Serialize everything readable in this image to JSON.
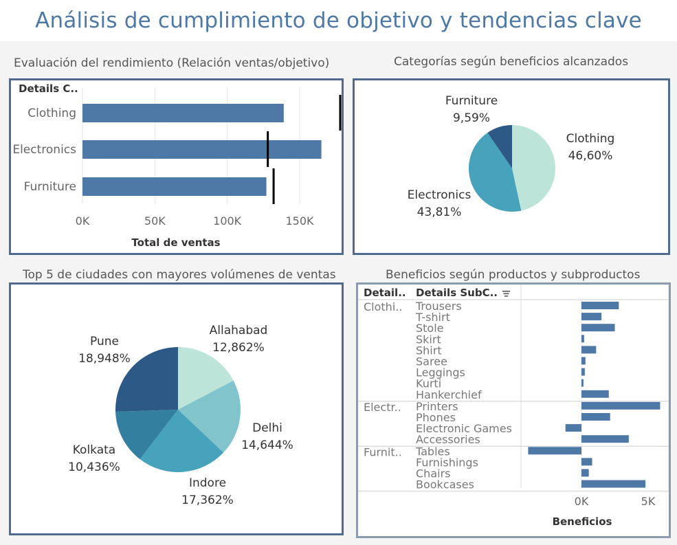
{
  "dashboard": {
    "title": "Análisis de cumplimiento de objetivo y tendencias clave"
  },
  "sheets": {
    "performance": {
      "title": "Evaluación del rendimiento (Relación ventas/objetivo)",
      "column_header": "Details C..",
      "xlabel": "Total de ventas"
    },
    "categories": {
      "title": "Categorías según beneficios alcanzados"
    },
    "cities": {
      "title": "Top 5 de ciudades con mayores volúmenes de ventas"
    },
    "products": {
      "title": "Beneficios según productos y subproductos",
      "header_category": "Detail..",
      "header_subcategory": "Details SubC..",
      "sort_icon": "sort-descending-icon",
      "xlabel": "Beneficios"
    }
  },
  "colors": {
    "bar": "#4e79a7",
    "target_marker": "#000000",
    "panel_border": "#4f6b8f",
    "title": "#4e79a7"
  },
  "chart_data": [
    {
      "id": "performance",
      "type": "bar",
      "orientation": "horizontal",
      "categories": [
        "Clothing",
        "Electronics",
        "Furniture"
      ],
      "series": [
        {
          "name": "Total de ventas",
          "values": [
            139000,
            165000,
            127000
          ]
        }
      ],
      "reference_marks": [
        178000,
        128000,
        132000
      ],
      "xlabel": "Total de ventas",
      "xticks": [
        "0K",
        "50K",
        "100K",
        "150K"
      ],
      "xlim": [
        0,
        185000
      ]
    },
    {
      "id": "categories",
      "type": "pie",
      "labels": [
        "Clothing",
        "Electronics",
        "Furniture"
      ],
      "values": [
        46.6,
        43.81,
        9.59
      ],
      "value_labels": [
        "46,60%",
        "43,81%",
        "9,59%"
      ],
      "colors": [
        "#bce4d8",
        "#47a2bc",
        "#2c5985"
      ]
    },
    {
      "id": "cities",
      "type": "pie",
      "labels": [
        "Allahabad",
        "Delhi",
        "Indore",
        "Kolkata",
        "Pune"
      ],
      "values": [
        12.862,
        14.644,
        17.362,
        10.436,
        18.948
      ],
      "value_labels": [
        "12,862%",
        "14,644%",
        "17,362%",
        "10,436%",
        "18,948%"
      ],
      "colors": [
        "#bce4d8",
        "#82c4cc",
        "#47a2bc",
        "#337fa0",
        "#2c5985"
      ]
    },
    {
      "id": "products",
      "type": "bar",
      "orientation": "horizontal",
      "groups": [
        {
          "label": "Clothi..",
          "items": [
            {
              "name": "Trousers",
              "value": 2800
            },
            {
              "name": "T-shirt",
              "value": 1500
            },
            {
              "name": "Stole",
              "value": 2500
            },
            {
              "name": "Skirt",
              "value": 200
            },
            {
              "name": "Shirt",
              "value": 1100
            },
            {
              "name": "Saree",
              "value": 300
            },
            {
              "name": "Leggings",
              "value": 250
            },
            {
              "name": "Kurti",
              "value": 150
            },
            {
              "name": "Hankerchief",
              "value": 2050
            }
          ]
        },
        {
          "label": "Electr..",
          "items": [
            {
              "name": "Printers",
              "value": 5900
            },
            {
              "name": "Phones",
              "value": 2150
            },
            {
              "name": "Electronic Games",
              "value": -1200
            },
            {
              "name": "Accessories",
              "value": 3550
            }
          ]
        },
        {
          "label": "Furnit..",
          "items": [
            {
              "name": "Tables",
              "value": -4000
            },
            {
              "name": "Furnishings",
              "value": 800
            },
            {
              "name": "Chairs",
              "value": 550
            },
            {
              "name": "Bookcases",
              "value": 4800
            }
          ]
        }
      ],
      "xlabel": "Beneficios",
      "xticks": [
        "0K",
        "5K"
      ],
      "xlim": [
        -4200,
        6400
      ]
    }
  ]
}
